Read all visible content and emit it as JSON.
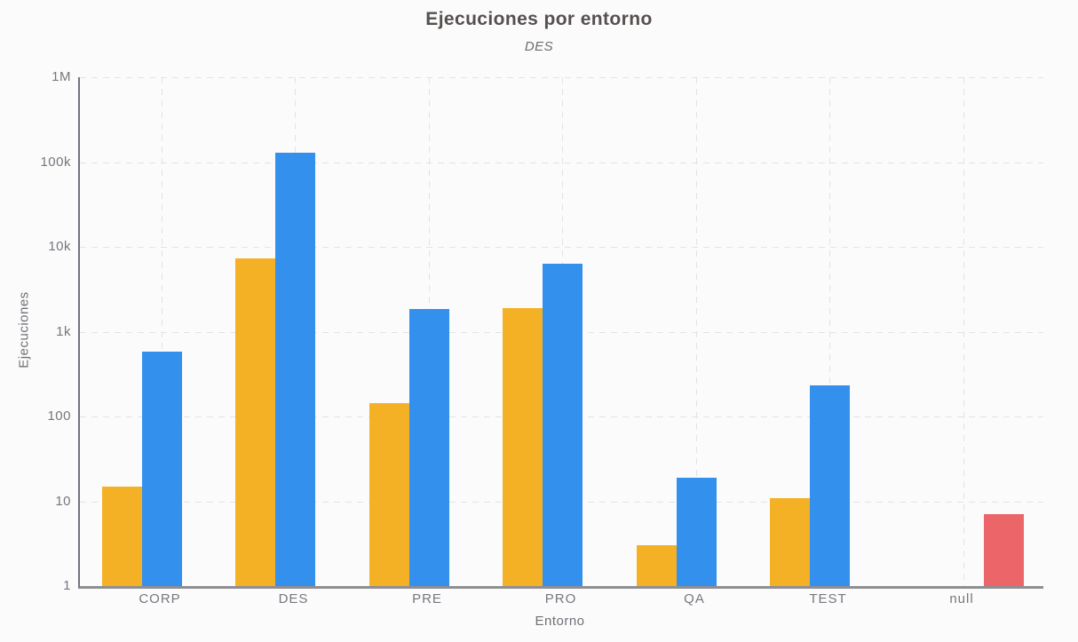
{
  "chart_data": {
    "type": "bar",
    "title": "Ejecuciones por entorno",
    "subtitle": "DES",
    "xlabel": "Entorno",
    "ylabel": "Ejecuciones",
    "y_scale": "log",
    "ylim": [
      1,
      1000000
    ],
    "grid": true,
    "legend_position": "none",
    "y_ticks": [
      {
        "label": "1",
        "value": 1
      },
      {
        "label": "10",
        "value": 10
      },
      {
        "label": "100",
        "value": 100
      },
      {
        "label": "1k",
        "value": 1000
      },
      {
        "label": "10k",
        "value": 10000
      },
      {
        "label": "100k",
        "value": 100000
      },
      {
        "label": "1M",
        "value": 1000000
      }
    ],
    "categories": [
      "CORP",
      "DES",
      "PRE",
      "PRO",
      "QA",
      "TEST",
      "null"
    ],
    "series": [
      {
        "color": "#f5b125",
        "values": [
          15,
          7300,
          145,
          1900,
          3,
          11,
          null
        ]
      },
      {
        "color": "#3390ec",
        "values": [
          580,
          130000,
          1850,
          6300,
          19,
          230,
          null
        ]
      },
      {
        "color": "#ec6568",
        "values": [
          null,
          null,
          null,
          null,
          null,
          null,
          7
        ]
      }
    ]
  }
}
